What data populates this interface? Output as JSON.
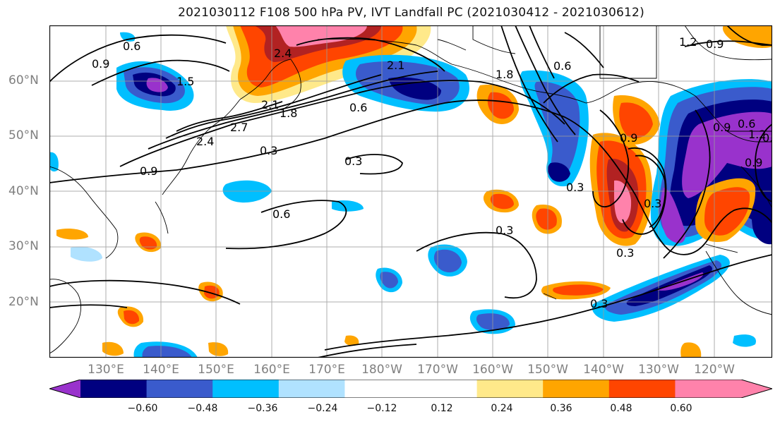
{
  "title": "2021030112 F108 500 hPa PV, IVT Landfall PC (2021030412 - 2021030612)",
  "lat_labels": [
    "60°N",
    "50°N",
    "40°N",
    "30°N",
    "20°N"
  ],
  "lon_labels": [
    "130°E",
    "140°E",
    "150°E",
    "160°E",
    "170°E",
    "180°W",
    "170°W",
    "160°W",
    "150°W",
    "140°W",
    "130°W",
    "120°W"
  ],
  "colorbar": {
    "colors": [
      "#9932CC",
      "#000080",
      "#3A5BCC",
      "#00BFFF",
      "#B0E2FF",
      "#FFFFFF",
      "#FFFFFF",
      "#FFE98A",
      "#FFA500",
      "#FF4500",
      "#B22222",
      "#FF82AB"
    ],
    "tick_labels": [
      "−0.60",
      "−0.48",
      "−0.36",
      "−0.24",
      "−0.12",
      "0.12",
      "0.24",
      "0.36",
      "0.48",
      "0.60"
    ]
  },
  "contour_labels": [
    "0.6",
    "0.9",
    "1.5",
    "2.4",
    "2.7",
    "2.4",
    "2.1",
    "1.8",
    "0.3",
    "0.9",
    "0.6",
    "0.3",
    "2.1",
    "1.8",
    "0.6",
    "1.2",
    "0.9",
    "0.9",
    "0.3",
    "0.6",
    "0.3",
    "0.3",
    "0.3",
    "0.9",
    "1.2",
    "0.9",
    "0.3",
    "0.9",
    "0.6"
  ]
}
